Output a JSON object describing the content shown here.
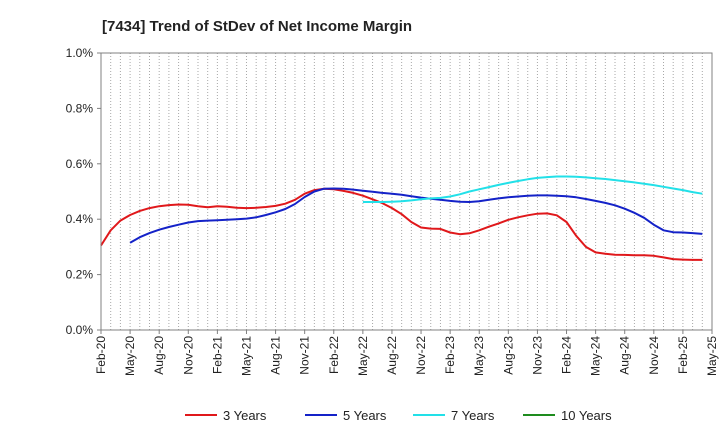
{
  "chart_data": {
    "type": "line",
    "title": "[7434]  Trend of StDev of Net Income Margin",
    "xlabel": "",
    "ylabel": "",
    "ylim": [
      0,
      1.0
    ],
    "yticks": [
      "0.0%",
      "0.2%",
      "0.4%",
      "0.6%",
      "0.8%",
      "1.0%"
    ],
    "xticks": [
      "Feb-20",
      "May-20",
      "Aug-20",
      "Nov-20",
      "Feb-21",
      "May-21",
      "Aug-21",
      "Nov-21",
      "Feb-22",
      "May-22",
      "Aug-22",
      "Nov-22",
      "Feb-23",
      "May-23",
      "Aug-23",
      "Nov-23",
      "Feb-24",
      "May-24",
      "Aug-24",
      "Nov-24",
      "Feb-25",
      "May-25"
    ],
    "grid": "vertical dotted",
    "legend_position": "bottom",
    "series": [
      {
        "name": "3 Years",
        "color": "#e0181b",
        "points": [
          [
            "Feb-20",
            0.305
          ],
          [
            "Mar-20",
            0.36
          ],
          [
            "Apr-20",
            0.395
          ],
          [
            "May-20",
            0.415
          ],
          [
            "Jun-20",
            0.43
          ],
          [
            "Jul-20",
            0.44
          ],
          [
            "Aug-20",
            0.447
          ],
          [
            "Sep-20",
            0.451
          ],
          [
            "Oct-20",
            0.453
          ],
          [
            "Nov-20",
            0.452
          ],
          [
            "Dec-20",
            0.447
          ],
          [
            "Jan-21",
            0.443
          ],
          [
            "Feb-21",
            0.447
          ],
          [
            "Mar-21",
            0.445
          ],
          [
            "Apr-21",
            0.441
          ],
          [
            "May-21",
            0.44
          ],
          [
            "Jun-21",
            0.441
          ],
          [
            "Jul-21",
            0.444
          ],
          [
            "Aug-21",
            0.448
          ],
          [
            "Sep-21",
            0.456
          ],
          [
            "Oct-21",
            0.47
          ],
          [
            "Nov-21",
            0.492
          ],
          [
            "Dec-21",
            0.505
          ],
          [
            "Jan-22",
            0.51
          ],
          [
            "Feb-22",
            0.508
          ],
          [
            "Mar-22",
            0.502
          ],
          [
            "Apr-22",
            0.495
          ],
          [
            "May-22",
            0.485
          ],
          [
            "Jun-22",
            0.472
          ],
          [
            "Jul-22",
            0.458
          ],
          [
            "Aug-22",
            0.44
          ],
          [
            "Sep-22",
            0.418
          ],
          [
            "Oct-22",
            0.39
          ],
          [
            "Nov-22",
            0.37
          ],
          [
            "Dec-22",
            0.366
          ],
          [
            "Jan-23",
            0.365
          ],
          [
            "Feb-23",
            0.352
          ],
          [
            "Mar-23",
            0.346
          ],
          [
            "Apr-23",
            0.349
          ],
          [
            "May-23",
            0.36
          ],
          [
            "Jun-23",
            0.373
          ],
          [
            "Jul-23",
            0.385
          ],
          [
            "Aug-23",
            0.398
          ],
          [
            "Sep-23",
            0.407
          ],
          [
            "Oct-23",
            0.414
          ],
          [
            "Nov-23",
            0.42
          ],
          [
            "Dec-23",
            0.421
          ],
          [
            "Jan-24",
            0.414
          ],
          [
            "Feb-24",
            0.39
          ],
          [
            "Mar-24",
            0.34
          ],
          [
            "Apr-24",
            0.3
          ],
          [
            "May-24",
            0.28
          ],
          [
            "Jun-24",
            0.275
          ],
          [
            "Jul-24",
            0.272
          ],
          [
            "Aug-24",
            0.271
          ],
          [
            "Sep-24",
            0.27
          ],
          [
            "Oct-24",
            0.27
          ],
          [
            "Nov-24",
            0.268
          ],
          [
            "Dec-24",
            0.262
          ],
          [
            "Jan-25",
            0.256
          ],
          [
            "Feb-25",
            0.254
          ],
          [
            "Mar-25",
            0.253
          ],
          [
            "Apr-25",
            0.253
          ]
        ]
      },
      {
        "name": "5 Years",
        "color": "#1422c8",
        "points": [
          [
            "May-20",
            0.315
          ],
          [
            "Jun-20",
            0.335
          ],
          [
            "Jul-20",
            0.35
          ],
          [
            "Aug-20",
            0.362
          ],
          [
            "Sep-20",
            0.372
          ],
          [
            "Oct-20",
            0.38
          ],
          [
            "Nov-20",
            0.388
          ],
          [
            "Dec-20",
            0.393
          ],
          [
            "Jan-21",
            0.395
          ],
          [
            "Feb-21",
            0.396
          ],
          [
            "Mar-21",
            0.398
          ],
          [
            "Apr-21",
            0.4
          ],
          [
            "May-21",
            0.402
          ],
          [
            "Jun-21",
            0.407
          ],
          [
            "Jul-21",
            0.415
          ],
          [
            "Aug-21",
            0.425
          ],
          [
            "Sep-21",
            0.437
          ],
          [
            "Oct-21",
            0.455
          ],
          [
            "Nov-21",
            0.48
          ],
          [
            "Dec-21",
            0.5
          ],
          [
            "Jan-22",
            0.51
          ],
          [
            "Feb-22",
            0.511
          ],
          [
            "Mar-22",
            0.51
          ],
          [
            "Apr-22",
            0.507
          ],
          [
            "May-22",
            0.503
          ],
          [
            "Jun-22",
            0.499
          ],
          [
            "Jul-22",
            0.495
          ],
          [
            "Aug-22",
            0.492
          ],
          [
            "Sep-22",
            0.488
          ],
          [
            "Oct-22",
            0.483
          ],
          [
            "Nov-22",
            0.478
          ],
          [
            "Dec-22",
            0.474
          ],
          [
            "Jan-23",
            0.47
          ],
          [
            "Feb-23",
            0.466
          ],
          [
            "Mar-23",
            0.463
          ],
          [
            "Apr-23",
            0.462
          ],
          [
            "May-23",
            0.465
          ],
          [
            "Jun-23",
            0.47
          ],
          [
            "Jul-23",
            0.475
          ],
          [
            "Aug-23",
            0.479
          ],
          [
            "Sep-23",
            0.482
          ],
          [
            "Oct-23",
            0.485
          ],
          [
            "Nov-23",
            0.486
          ],
          [
            "Dec-23",
            0.486
          ],
          [
            "Jan-24",
            0.485
          ],
          [
            "Feb-24",
            0.483
          ],
          [
            "Mar-24",
            0.479
          ],
          [
            "Apr-24",
            0.473
          ],
          [
            "May-24",
            0.466
          ],
          [
            "Jun-24",
            0.459
          ],
          [
            "Jul-24",
            0.45
          ],
          [
            "Aug-24",
            0.438
          ],
          [
            "Sep-24",
            0.423
          ],
          [
            "Oct-24",
            0.405
          ],
          [
            "Nov-24",
            0.38
          ],
          [
            "Dec-24",
            0.36
          ],
          [
            "Jan-25",
            0.353
          ],
          [
            "Feb-25",
            0.352
          ],
          [
            "Mar-25",
            0.35
          ],
          [
            "Apr-25",
            0.347
          ]
        ]
      },
      {
        "name": "7 Years",
        "color": "#22e0e8",
        "points": [
          [
            "May-22",
            0.462
          ],
          [
            "Jun-22",
            0.462
          ],
          [
            "Jul-22",
            0.462
          ],
          [
            "Aug-22",
            0.463
          ],
          [
            "Sep-22",
            0.465
          ],
          [
            "Oct-22",
            0.468
          ],
          [
            "Nov-22",
            0.472
          ],
          [
            "Dec-22",
            0.475
          ],
          [
            "Jan-23",
            0.477
          ],
          [
            "Feb-23",
            0.482
          ],
          [
            "Mar-23",
            0.49
          ],
          [
            "Apr-23",
            0.5
          ],
          [
            "May-23",
            0.508
          ],
          [
            "Jun-23",
            0.516
          ],
          [
            "Jul-23",
            0.524
          ],
          [
            "Aug-23",
            0.531
          ],
          [
            "Sep-23",
            0.538
          ],
          [
            "Oct-23",
            0.544
          ],
          [
            "Nov-23",
            0.549
          ],
          [
            "Dec-23",
            0.552
          ],
          [
            "Jan-24",
            0.554
          ],
          [
            "Feb-24",
            0.554
          ],
          [
            "Mar-24",
            0.553
          ],
          [
            "Apr-24",
            0.551
          ],
          [
            "May-24",
            0.548
          ],
          [
            "Jun-24",
            0.545
          ],
          [
            "Jul-24",
            0.541
          ],
          [
            "Aug-24",
            0.537
          ],
          [
            "Sep-24",
            0.533
          ],
          [
            "Oct-24",
            0.528
          ],
          [
            "Nov-24",
            0.523
          ],
          [
            "Dec-24",
            0.517
          ],
          [
            "Jan-25",
            0.511
          ],
          [
            "Feb-25",
            0.505
          ],
          [
            "Mar-25",
            0.498
          ],
          [
            "Apr-25",
            0.492
          ]
        ]
      },
      {
        "name": "10 Years",
        "color": "#1e8c1e",
        "points": []
      }
    ]
  }
}
